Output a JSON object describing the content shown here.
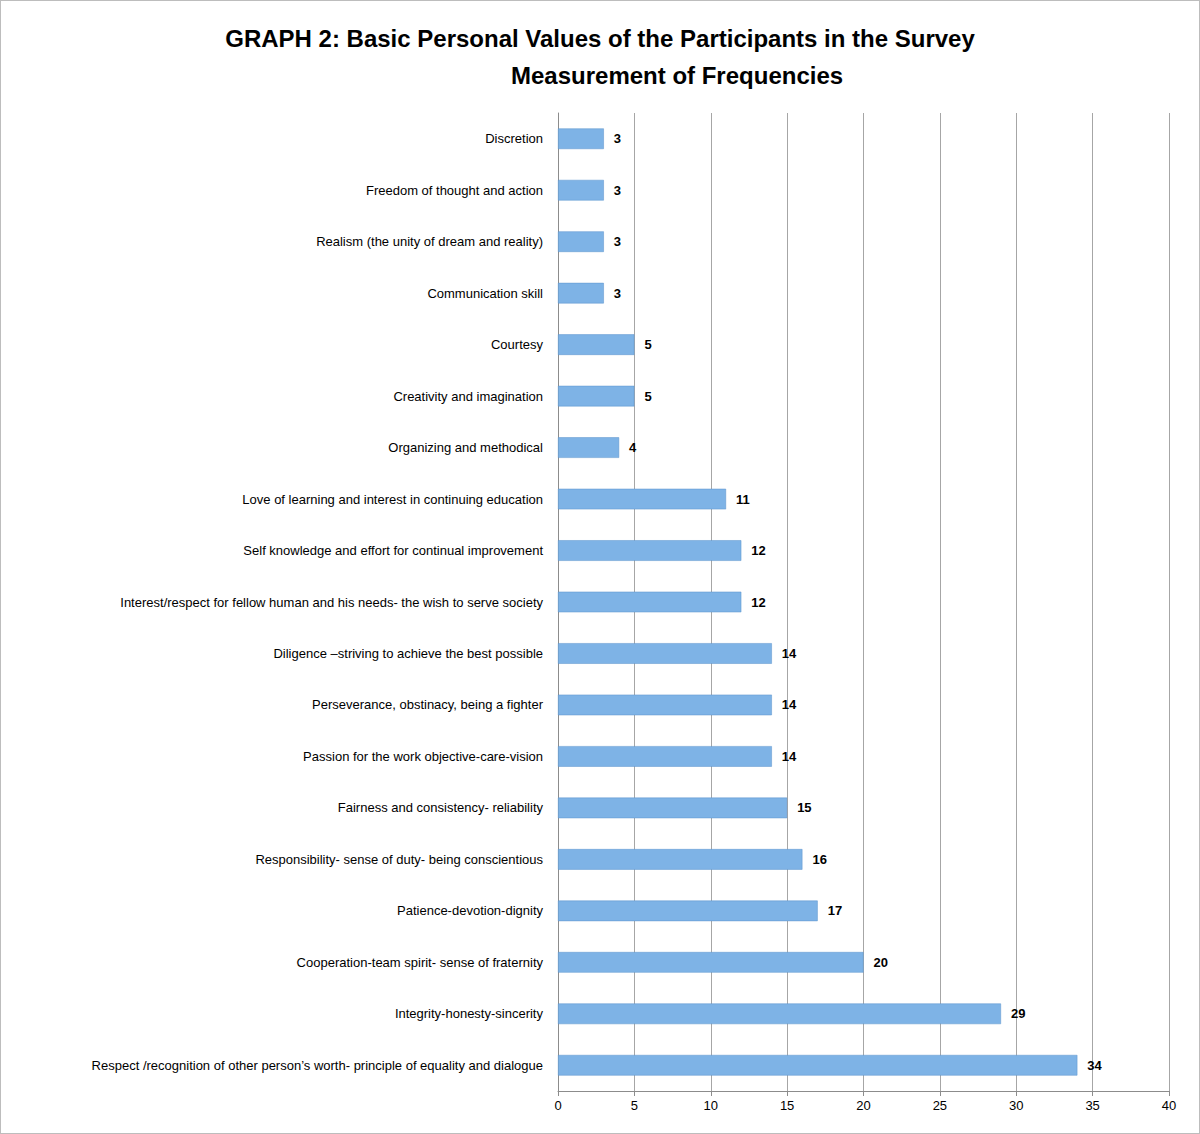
{
  "chart_data": {
    "type": "bar",
    "title": "GRAPH 2: Basic Personal Values of the Participants in the Survey",
    "subtitle": "Measurement of Frequencies",
    "orientation": "horizontal",
    "categories": [
      "Discretion",
      "Freedom of thought and action",
      "Realism (the unity of dream and reality)",
      "Communication skill",
      "Courtesy",
      "Creativity and imagination",
      "Organizing and methodical",
      "Love of learning and interest in continuing education",
      "Self knowledge and effort for continual improvement",
      "Interest/respect for fellow human and his needs- the wish to serve society",
      "Diligence –striving to achieve the best possible",
      "Perseverance, obstinacy, being a fighter",
      "Passion for the work objective-care-vision",
      "Fairness and consistency- reliability",
      "Responsibility- sense of duty- being conscientious",
      "Patience-devotion-dignity",
      "Cooperation-team spirit- sense of fraternity",
      "Integrity-honesty-sincerity",
      "Respect /recognition of other person’s worth- principle of equality and dialogue"
    ],
    "values": [
      3,
      3,
      3,
      3,
      5,
      5,
      4,
      11,
      12,
      12,
      14,
      14,
      14,
      15,
      16,
      17,
      20,
      29,
      34
    ],
    "color": "#7eb3e6",
    "xlim": [
      0,
      40
    ],
    "xticks": [
      0,
      5,
      10,
      15,
      20,
      25,
      30,
      35,
      40
    ],
    "grid": true,
    "data_labels": true
  }
}
